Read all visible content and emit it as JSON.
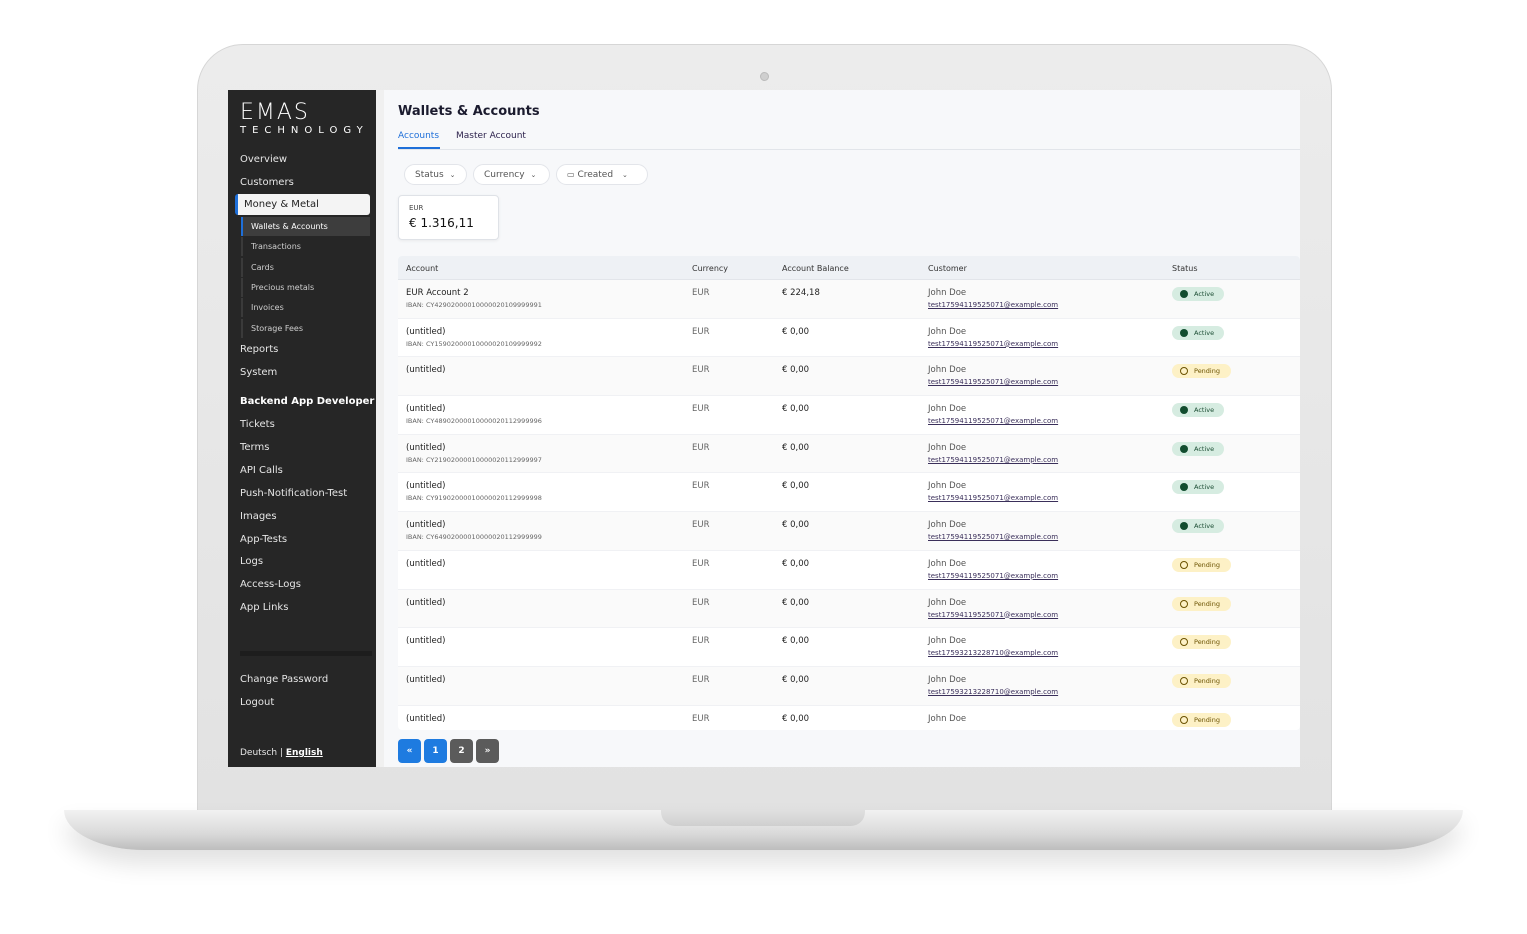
{
  "brand": {
    "logo": "EMAS",
    "sub": "TECHNOLOGY"
  },
  "sidebar": {
    "items": [
      "Overview",
      "Customers"
    ],
    "active": "Money & Metal",
    "sub": [
      "Wallets & Accounts",
      "Transactions",
      "Cards",
      "Precious metals",
      "Invoices",
      "Storage Fees"
    ],
    "items2": [
      "Reports",
      "System"
    ],
    "section": "Backend App Developer",
    "items3": [
      "Tickets",
      "Terms",
      "API Calls",
      "Push-Notification-Test",
      "Images",
      "App-Tests",
      "Logs",
      "Access-Logs",
      "App Links"
    ],
    "bottom": [
      "Change Password",
      "Logout"
    ],
    "lang": {
      "de": "Deutsch",
      "sep": "|",
      "en": "English"
    }
  },
  "page": {
    "title": "Wallets & Accounts",
    "tabs": [
      "Accounts",
      "Master Account"
    ],
    "filters": [
      "Status",
      "Currency",
      "Created"
    ]
  },
  "summary": {
    "currency": "EUR",
    "amount": "€ 1.316,11"
  },
  "table": {
    "headers": [
      "Account",
      "Currency",
      "Account Balance",
      "Customer",
      "Status"
    ],
    "rows": [
      {
        "name": "EUR Account 2",
        "iban": "IBAN: CY42902000010000020109999991",
        "cur": "EUR",
        "bal": "€ 224,18",
        "cust": "John Doe",
        "email": "test17594119525071@example.com",
        "status": "Active"
      },
      {
        "name": "(untitled)",
        "iban": "IBAN: CY15902000010000020109999992",
        "cur": "EUR",
        "bal": "€ 0,00",
        "cust": "John Doe",
        "email": "test17594119525071@example.com",
        "status": "Active"
      },
      {
        "name": "(untitled)",
        "iban": "",
        "cur": "EUR",
        "bal": "€ 0,00",
        "cust": "John Doe",
        "email": "test17594119525071@example.com",
        "status": "Pending"
      },
      {
        "name": "(untitled)",
        "iban": "IBAN: CY48902000010000020112999996",
        "cur": "EUR",
        "bal": "€ 0,00",
        "cust": "John Doe",
        "email": "test17594119525071@example.com",
        "status": "Active"
      },
      {
        "name": "(untitled)",
        "iban": "IBAN: CY21902000010000020112999997",
        "cur": "EUR",
        "bal": "€ 0,00",
        "cust": "John Doe",
        "email": "test17594119525071@example.com",
        "status": "Active"
      },
      {
        "name": "(untitled)",
        "iban": "IBAN: CY91902000010000020112999998",
        "cur": "EUR",
        "bal": "€ 0,00",
        "cust": "John Doe",
        "email": "test17594119525071@example.com",
        "status": "Active"
      },
      {
        "name": "(untitled)",
        "iban": "IBAN: CY64902000010000020112999999",
        "cur": "EUR",
        "bal": "€ 0,00",
        "cust": "John Doe",
        "email": "test17594119525071@example.com",
        "status": "Active"
      },
      {
        "name": "(untitled)",
        "iban": "",
        "cur": "EUR",
        "bal": "€ 0,00",
        "cust": "John Doe",
        "email": "test17594119525071@example.com",
        "status": "Pending"
      },
      {
        "name": "(untitled)",
        "iban": "",
        "cur": "EUR",
        "bal": "€ 0,00",
        "cust": "John Doe",
        "email": "test17594119525071@example.com",
        "status": "Pending"
      },
      {
        "name": "(untitled)",
        "iban": "",
        "cur": "EUR",
        "bal": "€ 0,00",
        "cust": "John Doe",
        "email": "test17593213228710@example.com",
        "status": "Pending"
      },
      {
        "name": "(untitled)",
        "iban": "",
        "cur": "EUR",
        "bal": "€ 0,00",
        "cust": "John Doe",
        "email": "test17593213228710@example.com",
        "status": "Pending"
      },
      {
        "name": "(untitled)",
        "iban": "",
        "cur": "EUR",
        "bal": "€ 0,00",
        "cust": "John Doe",
        "email": "",
        "status": "Pending"
      }
    ]
  },
  "pager": [
    "«",
    "1",
    "2",
    "»"
  ],
  "colors": {
    "accent": "#1e6fd9",
    "sidebar": "#262626",
    "active_badge": "#d6ece1",
    "pending_badge": "#fdf1c6"
  }
}
